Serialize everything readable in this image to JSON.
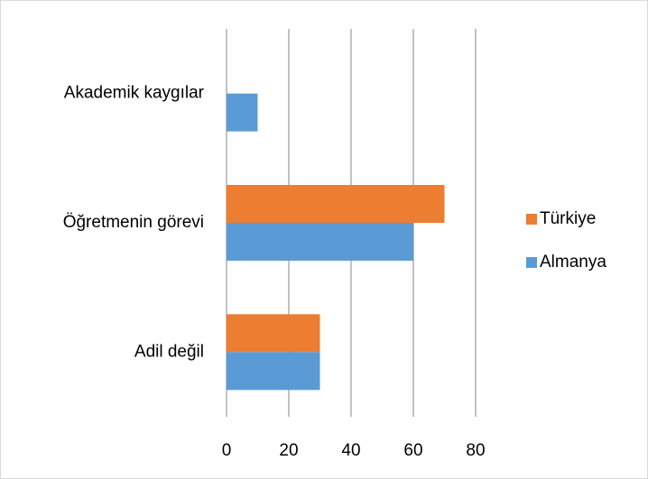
{
  "chart_data": {
    "type": "barh",
    "categories": [
      "Akademik kaygılar",
      "Öğretmenin görevi",
      "Adil değil"
    ],
    "series": [
      {
        "name": "Türkiye",
        "color": "#ed7d31",
        "values": [
          0,
          70,
          30
        ]
      },
      {
        "name": "Almanya",
        "color": "#5b9bd5",
        "values": [
          10,
          60,
          30
        ]
      }
    ],
    "xlim": [
      0,
      80
    ],
    "xticks": [
      0,
      20,
      40,
      60,
      80
    ],
    "grid": true,
    "legend": "right"
  }
}
